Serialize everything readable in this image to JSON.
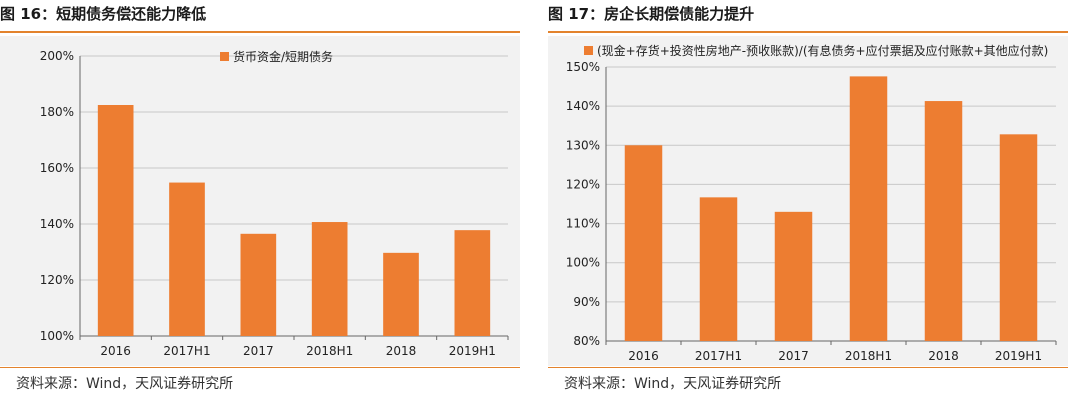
{
  "left": {
    "title": "图 16：短期债务偿还能力降低",
    "source": "资料来源：Wind，天风证券研究所",
    "chart_data": {
      "type": "bar",
      "categories": [
        "2016",
        "2017H1",
        "2017",
        "2018H1",
        "2018",
        "2019H1"
      ],
      "series": [
        {
          "name": "货币资金/短期债务",
          "values": [
            182.5,
            154.8,
            136.5,
            140.7,
            129.7,
            137.8
          ]
        }
      ],
      "ylim": [
        100,
        200
      ],
      "yticks": [
        "100%",
        "120%",
        "140%",
        "160%",
        "180%",
        "200%"
      ],
      "ytick_values": [
        100,
        120,
        140,
        160,
        180,
        200
      ],
      "grid": true,
      "bar_color": "#ed7d31"
    }
  },
  "right": {
    "title": "图 17：房企长期偿债能力提升",
    "source": "资料来源：Wind，天风证券研究所",
    "chart_data": {
      "type": "bar",
      "categories": [
        "2016",
        "2017H1",
        "2017",
        "2018H1",
        "2018",
        "2019H1"
      ],
      "series": [
        {
          "name": "(现金+存货+投资性房地产-预收账款)/(有息债务+应付票据及应付账款+其他应付款)",
          "values": [
            130.0,
            116.7,
            113.0,
            147.6,
            141.3,
            132.8
          ]
        }
      ],
      "ylim": [
        80,
        150
      ],
      "yticks": [
        "80%",
        "90%",
        "100%",
        "110%",
        "120%",
        "130%",
        "140%",
        "150%"
      ],
      "ytick_values": [
        80,
        90,
        100,
        110,
        120,
        130,
        140,
        150
      ],
      "grid": true,
      "bar_color": "#ed7d31"
    }
  }
}
